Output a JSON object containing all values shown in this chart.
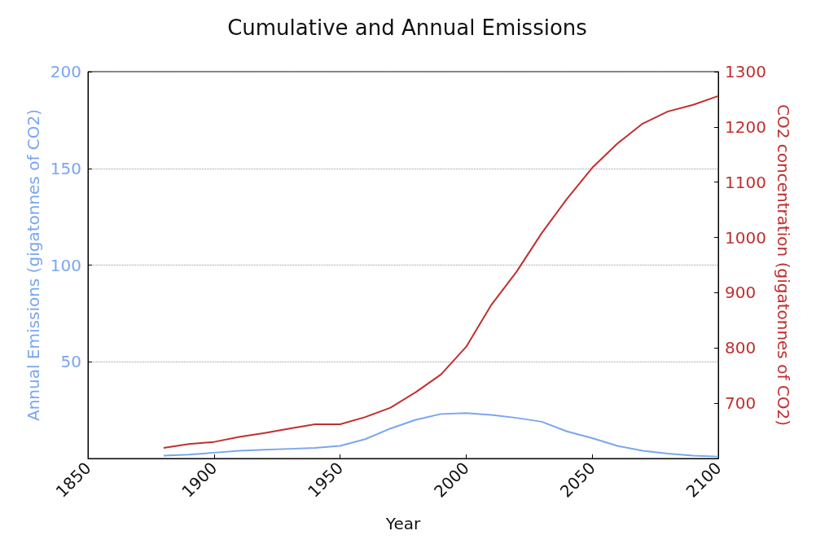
{
  "chart_data": {
    "type": "line",
    "title": "Cumulative and Annual Emissions",
    "xlabel": "Year",
    "ylabel": "Annual Emissions (gigatonnes of CO2)",
    "y2label": "CO2 concentration (gigatonnes of CO2)",
    "x": [
      1880,
      1890,
      1900,
      1910,
      1920,
      1930,
      1940,
      1950,
      1960,
      1970,
      1980,
      1990,
      2000,
      2010,
      2020,
      2030,
      2040,
      2050,
      2060,
      2070,
      2080,
      2090,
      2100
    ],
    "series": [
      {
        "color": "#7aa6f0",
        "values": [
          1.5,
          2,
          3,
          4,
          4.5,
          5,
          5.5,
          6.5,
          10,
          15.5,
          20,
          23,
          23.5,
          22.5,
          21,
          19,
          14,
          10.5,
          6.5,
          4,
          2.5,
          1.5,
          1
        ]
      },
      {
        "color": "#c0302f",
        "axis": "y2",
        "values": [
          619,
          626,
          630,
          639,
          646,
          654,
          662,
          662,
          675,
          692,
          720,
          752,
          802,
          878,
          938,
          1008,
          1070,
          1126,
          1170,
          1206,
          1228,
          1240,
          1256
        ]
      }
    ],
    "xlim": [
      1850,
      2100
    ],
    "xticks": [
      1850,
      1900,
      1950,
      2000,
      2050,
      2100
    ],
    "ylim": [
      0,
      200
    ],
    "yticks": [
      50,
      100,
      150,
      200
    ],
    "y2lim": [
      600,
      1300
    ],
    "y2ticks": [
      700,
      800,
      900,
      1000,
      1100,
      1200,
      1300
    ],
    "grid": "y",
    "marker": "none",
    "line_style": "solid"
  }
}
